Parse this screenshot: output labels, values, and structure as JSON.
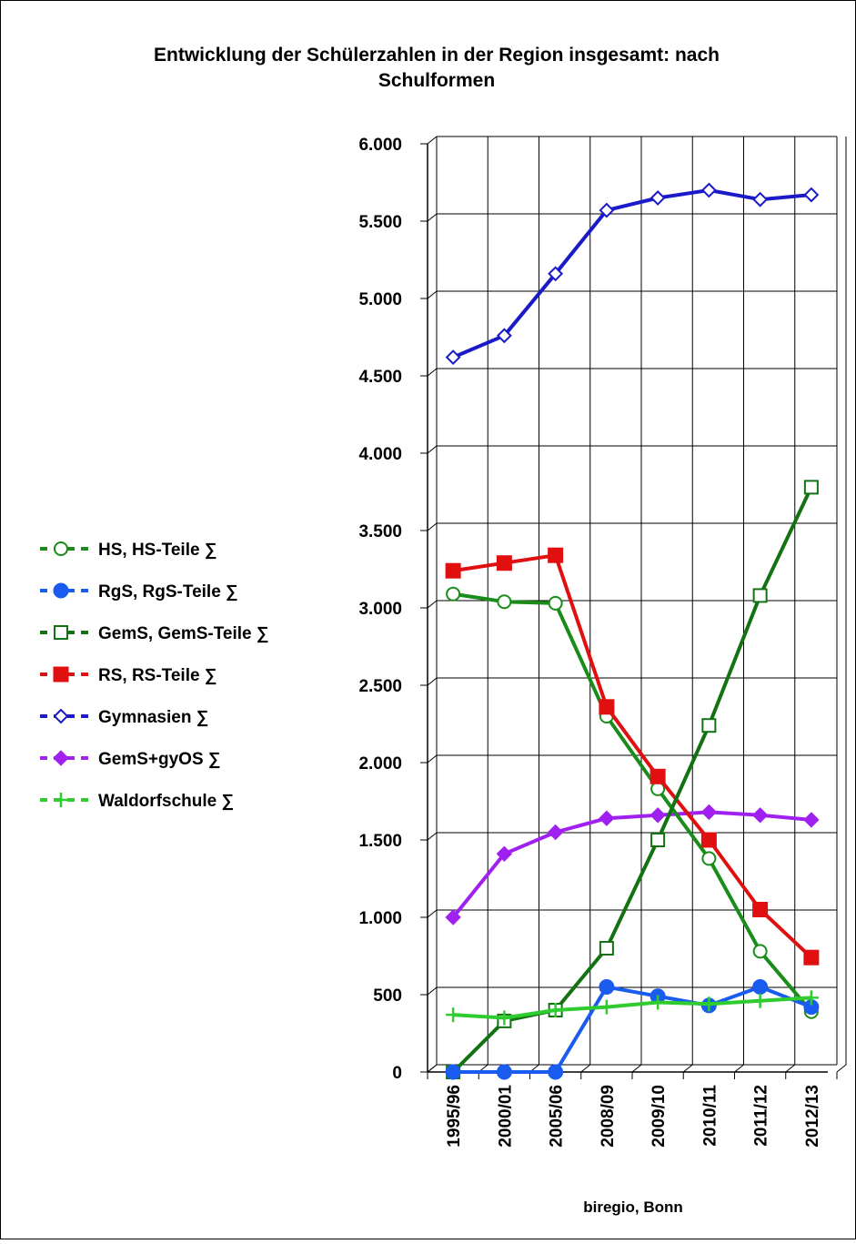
{
  "chart_data": {
    "type": "line",
    "title_line1": "Entwicklung der Schülerzahlen in der Region insgesamt: nach",
    "title_line2": "Schulformen",
    "source": "biregio, Bonn",
    "categories": [
      "1995/96",
      "2000/01",
      "2005/06",
      "2008/09",
      "2009/10",
      "2010/11",
      "2011/12",
      "2012/13"
    ],
    "ylim": [
      0,
      6000
    ],
    "yticks": [
      {
        "value": 0,
        "label": "0"
      },
      {
        "value": 500,
        "label": "500"
      },
      {
        "value": 1000,
        "label": "1.000"
      },
      {
        "value": 1500,
        "label": "1.500"
      },
      {
        "value": 2000,
        "label": "2.000"
      },
      {
        "value": 2500,
        "label": "2.500"
      },
      {
        "value": 3000,
        "label": "3.000"
      },
      {
        "value": 3500,
        "label": "3.500"
      },
      {
        "value": 4000,
        "label": "4.000"
      },
      {
        "value": 4500,
        "label": "4.500"
      },
      {
        "value": 5000,
        "label": "5.000"
      },
      {
        "value": 5500,
        "label": "5.500"
      },
      {
        "value": 6000,
        "label": "6.000"
      }
    ],
    "grid": true,
    "legend_position": "left",
    "series": [
      {
        "name": "HS, HS-Teile ∑",
        "color": "#1a8c1a",
        "marker": "circle-open",
        "values": [
          3090,
          3040,
          3030,
          2300,
          1830,
          1380,
          780,
          390
        ]
      },
      {
        "name": "RgS, RgS-Teile ∑",
        "color": "#1a5cf0",
        "marker": "circle-filled",
        "values": [
          0,
          0,
          0,
          550,
          490,
          430,
          550,
          420
        ]
      },
      {
        "name": "GemS, GemS-Teile ∑",
        "color": "#137313",
        "marker": "square-open",
        "values": [
          0,
          330,
          400,
          800,
          1500,
          2240,
          3080,
          3780
        ]
      },
      {
        "name": "RS, RS-Teile ∑",
        "color": "#e01010",
        "marker": "square-filled",
        "values": [
          3240,
          3290,
          3340,
          2360,
          1910,
          1500,
          1050,
          740
        ]
      },
      {
        "name": "Gymnasien ∑",
        "color": "#1a1ac8",
        "marker": "diamond-open",
        "values": [
          4620,
          4760,
          5160,
          5570,
          5650,
          5700,
          5640,
          5670
        ]
      },
      {
        "name": "GemS+gyOS ∑",
        "color": "#a020f0",
        "marker": "diamond-filled",
        "values": [
          1000,
          1410,
          1550,
          1640,
          1660,
          1680,
          1660,
          1630
        ]
      },
      {
        "name": "Waldorfschule ∑",
        "color": "#2ecc2e",
        "marker": "plus",
        "values": [
          370,
          350,
          400,
          420,
          450,
          440,
          460,
          480
        ]
      }
    ]
  }
}
